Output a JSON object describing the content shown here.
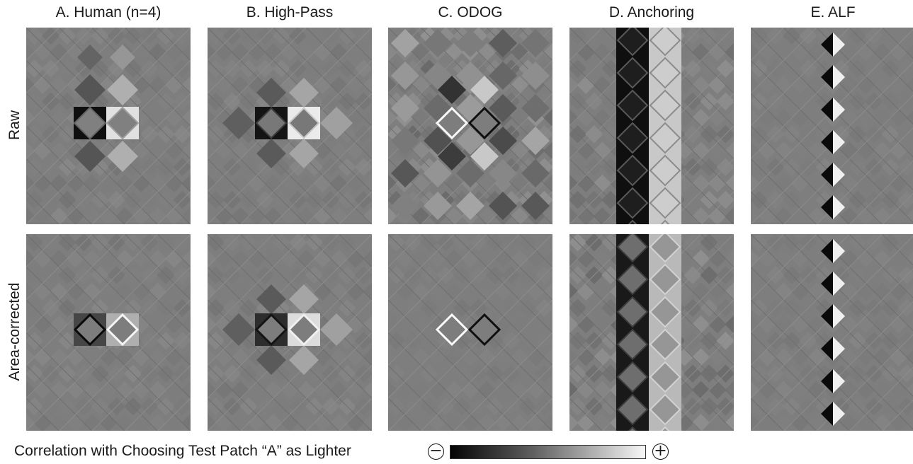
{
  "columns": [
    {
      "title": "A. Human (n=4)",
      "key": "human"
    },
    {
      "title": "B. High-Pass",
      "key": "highpass"
    },
    {
      "title": "C. ODOG",
      "key": "odog"
    },
    {
      "title": "D. Anchoring",
      "key": "anchoring"
    },
    {
      "title": "E. ALF",
      "key": "alf"
    }
  ],
  "rows": [
    {
      "label": "Raw",
      "key": "raw"
    },
    {
      "label": "Area-corrected",
      "key": "area"
    }
  ],
  "colorbar": {
    "label": "Correlation with Choosing Test Patch “A” as Lighter",
    "min_symbol": "−",
    "max_symbol": "+"
  }
}
